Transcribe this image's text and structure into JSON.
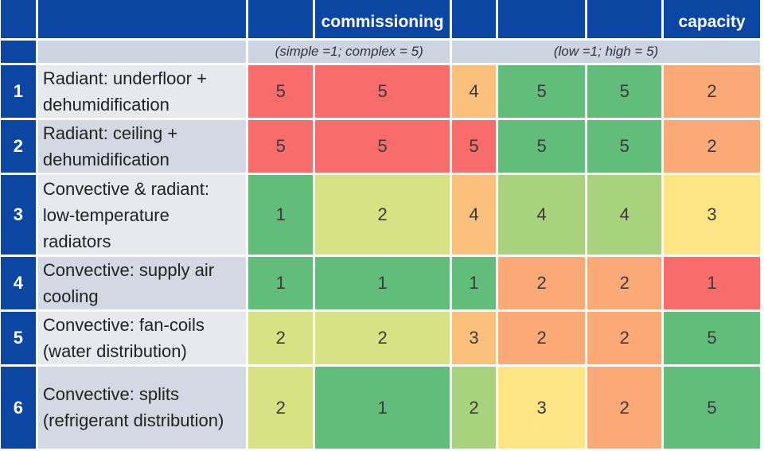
{
  "header": {
    "columns": [
      "",
      "",
      "",
      "commissioning",
      "",
      "",
      "",
      "capacity"
    ],
    "scale_left": "(simple =1; complex = 5)",
    "scale_right": "(low =1; high = 5)"
  },
  "rows": [
    {
      "num": "1",
      "lines": [
        "Radiant: underfloor +",
        "dehumidification"
      ],
      "values": [
        "5",
        "5",
        "4",
        "5",
        "5",
        "2"
      ]
    },
    {
      "num": "2",
      "lines": [
        "Radiant: ceiling +",
        "dehumidification"
      ],
      "values": [
        "5",
        "5",
        "5",
        "5",
        "5",
        "2"
      ]
    },
    {
      "num": "3",
      "lines": [
        "Convective & radiant:",
        "low-temperature",
        "radiators"
      ],
      "values": [
        "1",
        "2",
        "4",
        "4",
        "4",
        "3"
      ]
    },
    {
      "num": "4",
      "lines": [
        "Convective: supply air",
        "cooling"
      ],
      "values": [
        "1",
        "1",
        "1",
        "2",
        "2",
        "1"
      ]
    },
    {
      "num": "5",
      "lines": [
        "Convective: fan-coils",
        "(water distribution)"
      ],
      "values": [
        "2",
        "2",
        "3",
        "2",
        "2",
        "5"
      ]
    },
    {
      "num": "6",
      "lines": [
        "Convective: splits",
        "(refrigerant distribution)"
      ],
      "values": [
        "2",
        "1",
        "2",
        "3",
        "2",
        "5"
      ]
    }
  ],
  "colors": {
    "header_blue": "#0b47a2",
    "scale": {
      "green": "#62bd7a",
      "light_green": "#a9d27f",
      "yellow_green": "#d6e283",
      "yellow": "#fde585",
      "orange": "#fbaa77",
      "red": "#f86c6b"
    },
    "cells": [
      [
        "#f86c6b",
        "#f86c6b",
        "#fbc07b",
        "#62bd7a",
        "#62bd7a",
        "#fbaa77"
      ],
      [
        "#f86c6b",
        "#f86c6b",
        "#f86c6b",
        "#62bd7a",
        "#62bd7a",
        "#fbaa77"
      ],
      [
        "#62bd7a",
        "#d6e283",
        "#fbc07b",
        "#a9d27f",
        "#a9d27f",
        "#fde585"
      ],
      [
        "#62bd7a",
        "#62bd7a",
        "#62bd7a",
        "#fbaa77",
        "#fbaa77",
        "#f86c6b"
      ],
      [
        "#d6e283",
        "#d6e283",
        "#fbc07b",
        "#fbaa77",
        "#fbaa77",
        "#62bd7a"
      ],
      [
        "#d6e283",
        "#62bd7a",
        "#a9d27f",
        "#fde585",
        "#fbaa77",
        "#62bd7a"
      ]
    ]
  }
}
